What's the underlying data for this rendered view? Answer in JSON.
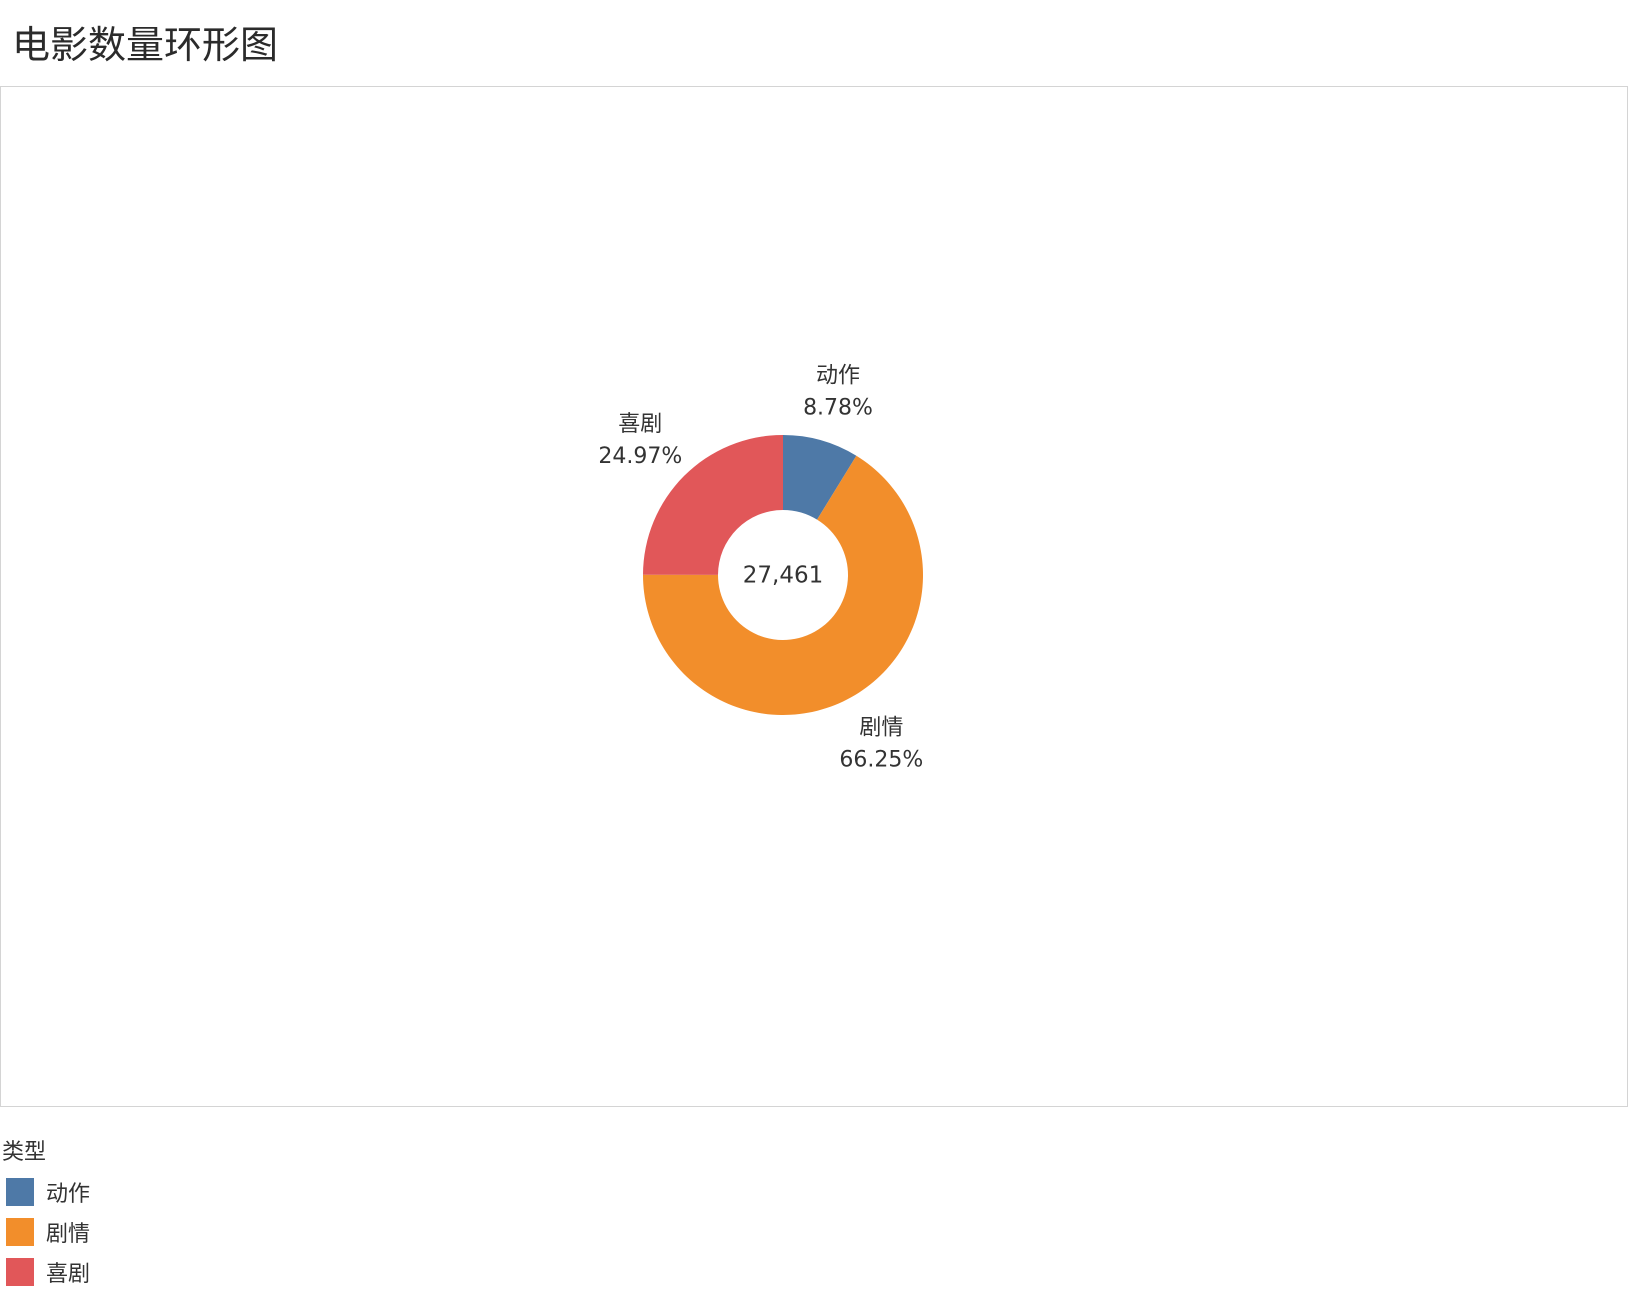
{
  "chart_data": {
    "type": "pie",
    "title": "电影数量环形图",
    "donut": true,
    "center_label": "27,461",
    "total": 27461,
    "start_angle_deg": 0,
    "direction": "clockwise",
    "slices": [
      {
        "category": "动作",
        "percent": 8.78,
        "percent_label": "8.78%",
        "color": "#4e79a7"
      },
      {
        "category": "剧情",
        "percent": 66.25,
        "percent_label": "66.25%",
        "color": "#f28e2b"
      },
      {
        "category": "喜剧",
        "percent": 24.97,
        "percent_label": "24.97%",
        "color": "#e15759"
      }
    ],
    "legend": {
      "title": "类型",
      "placement": "bottom-left",
      "items": [
        {
          "label": "动作",
          "color": "#4e79a7"
        },
        {
          "label": "剧情",
          "color": "#f28e2b"
        },
        {
          "label": "喜剧",
          "color": "#e15759"
        }
      ]
    }
  }
}
